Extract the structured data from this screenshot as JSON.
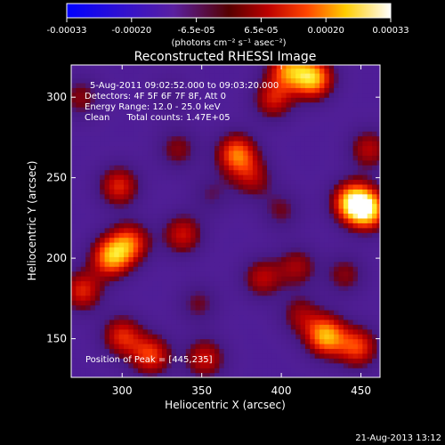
{
  "chart_data": {
    "type": "heatmap",
    "title": "Reconstructed RHESSI Image",
    "xlabel": "Heliocentric X (arcsec)",
    "ylabel": "Heliocentric Y (arcsec)",
    "xlim": [
      268,
      462
    ],
    "ylim": [
      126,
      320
    ],
    "x_ticks": [
      300,
      350,
      400,
      450
    ],
    "y_ticks": [
      150,
      200,
      250,
      300
    ],
    "colorbar": {
      "ticks": [
        "-0.00033",
        "-0.00020",
        "-6.5e-05",
        "6.5e-05",
        "0.00020",
        "0.00033"
      ],
      "units": "(photons cm⁻² s⁻¹ asec⁻²)",
      "range": [
        -0.00033,
        0.00033
      ],
      "colors": [
        "#0000ff",
        "#ff0000",
        "#ffff00",
        "#ffffff"
      ]
    },
    "annotations": [
      "5-Aug-2011 09:02:52.000 to 09:03:20.000",
      "Detectors: 4F 5F 6F 7F 8F, Att 0",
      "Energy Range: 12.0 - 25.0 keV",
      "Clean      Total counts: 1.47E+05"
    ],
    "peak_label": "Position of Peak = [445,235]",
    "blobs": [
      {
        "x": 445,
        "y": 235,
        "v": 0.00033
      },
      {
        "x": 455,
        "y": 230,
        "v": 0.00028
      },
      {
        "x": 420,
        "y": 312,
        "v": 0.00031
      },
      {
        "x": 404,
        "y": 318,
        "v": 0.00024
      },
      {
        "x": 395,
        "y": 299,
        "v": 0.00018
      },
      {
        "x": 293,
        "y": 201,
        "v": 0.00028
      },
      {
        "x": 305,
        "y": 210,
        "v": 0.00022
      },
      {
        "x": 372,
        "y": 265,
        "v": 0.00026
      },
      {
        "x": 382,
        "y": 250,
        "v": 0.00014
      },
      {
        "x": 428,
        "y": 152,
        "v": 0.0003
      },
      {
        "x": 448,
        "y": 145,
        "v": 0.00022
      },
      {
        "x": 298,
        "y": 245,
        "v": 0.0002
      },
      {
        "x": 338,
        "y": 215,
        "v": 0.00018
      },
      {
        "x": 335,
        "y": 268,
        "v": 0.00012
      },
      {
        "x": 318,
        "y": 140,
        "v": 0.00022
      },
      {
        "x": 300,
        "y": 152,
        "v": 0.0002
      },
      {
        "x": 352,
        "y": 138,
        "v": 0.00018
      },
      {
        "x": 275,
        "y": 180,
        "v": 0.0002
      },
      {
        "x": 388,
        "y": 188,
        "v": 0.00016
      },
      {
        "x": 410,
        "y": 195,
        "v": 0.00014
      },
      {
        "x": 412,
        "y": 165,
        "v": 0.00013
      },
      {
        "x": 440,
        "y": 190,
        "v": 0.00012
      },
      {
        "x": 348,
        "y": 172,
        "v": 0.0001
      },
      {
        "x": 274,
        "y": 300,
        "v": 0.00012
      },
      {
        "x": 455,
        "y": 268,
        "v": 0.00016
      },
      {
        "x": 400,
        "y": 230,
        "v": 0.0001
      },
      {
        "x": 356,
        "y": 240,
        "v": 8e-05
      },
      {
        "x": 330,
        "y": 300,
        "v": 6e-05
      }
    ]
  },
  "footer": {
    "timestamp": "21-Aug-2013 13:12"
  }
}
